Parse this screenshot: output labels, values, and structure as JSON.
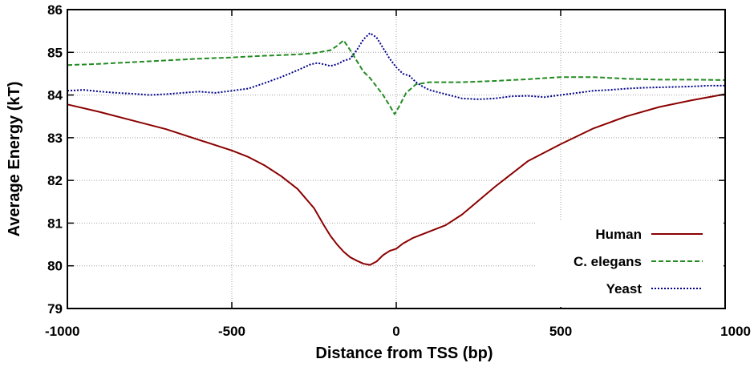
{
  "chart_data": {
    "type": "line",
    "title": "",
    "xlabel": "Distance from TSS (bp)",
    "ylabel": "Average Energy (kT)",
    "xlim": [
      -1000,
      1000
    ],
    "ylim": [
      79,
      86
    ],
    "xticks": [
      -1000,
      -500,
      0,
      500,
      1000
    ],
    "xtick_labels": [
      "-1000",
      "-500",
      "0",
      "500",
      "1000"
    ],
    "yticks": [
      79,
      80,
      81,
      82,
      83,
      84,
      85,
      86
    ],
    "ytick_labels": [
      "79",
      "80",
      "81",
      "82",
      "83",
      "84",
      "85",
      "86"
    ],
    "grid": true,
    "legend_position": "bottom-right",
    "series": [
      {
        "name": "Human",
        "color": "#8b0000",
        "dash": "solid",
        "x": [
          -1000,
          -900,
          -800,
          -700,
          -600,
          -500,
          -450,
          -400,
          -350,
          -300,
          -250,
          -220,
          -200,
          -180,
          -160,
          -140,
          -120,
          -100,
          -80,
          -60,
          -40,
          -20,
          0,
          20,
          50,
          100,
          150,
          200,
          300,
          400,
          500,
          600,
          700,
          800,
          900,
          1000
        ],
        "y": [
          83.78,
          83.6,
          83.4,
          83.2,
          82.95,
          82.7,
          82.55,
          82.35,
          82.1,
          81.8,
          81.35,
          80.95,
          80.7,
          80.5,
          80.33,
          80.2,
          80.12,
          80.05,
          80.02,
          80.1,
          80.25,
          80.35,
          80.4,
          80.52,
          80.65,
          80.8,
          80.95,
          81.2,
          81.85,
          82.45,
          82.85,
          83.22,
          83.5,
          83.72,
          83.88,
          84.02
        ]
      },
      {
        "name": "C. elegans",
        "color": "#228b22",
        "dash": "dashed",
        "x": [
          -1000,
          -900,
          -800,
          -700,
          -600,
          -500,
          -400,
          -300,
          -250,
          -200,
          -180,
          -160,
          -140,
          -120,
          -100,
          -80,
          -60,
          -40,
          -20,
          -5,
          10,
          30,
          60,
          100,
          200,
          300,
          400,
          500,
          600,
          700,
          800,
          900,
          1000
        ],
        "y": [
          84.7,
          84.73,
          84.77,
          84.81,
          84.85,
          84.88,
          84.92,
          84.95,
          84.98,
          85.05,
          85.15,
          85.28,
          85.05,
          84.8,
          84.55,
          84.4,
          84.2,
          84.0,
          83.75,
          83.55,
          83.75,
          84.05,
          84.25,
          84.3,
          84.3,
          84.33,
          84.37,
          84.42,
          84.42,
          84.38,
          84.36,
          84.36,
          84.35
        ]
      },
      {
        "name": "Yeast",
        "color": "#00008b",
        "dash": "dotted",
        "x": [
          -1000,
          -950,
          -900,
          -850,
          -800,
          -750,
          -700,
          -650,
          -600,
          -550,
          -500,
          -450,
          -400,
          -350,
          -300,
          -280,
          -260,
          -240,
          -220,
          -200,
          -180,
          -160,
          -140,
          -120,
          -100,
          -80,
          -60,
          -40,
          -20,
          0,
          20,
          40,
          60,
          80,
          100,
          150,
          200,
          250,
          300,
          350,
          400,
          450,
          500,
          550,
          600,
          650,
          700,
          750,
          800,
          850,
          900,
          950,
          1000
        ],
        "y": [
          84.1,
          84.12,
          84.08,
          84.05,
          84.03,
          84.0,
          84.02,
          84.05,
          84.08,
          84.05,
          84.1,
          84.15,
          84.28,
          84.42,
          84.58,
          84.65,
          84.72,
          84.75,
          84.72,
          84.68,
          84.72,
          84.8,
          84.85,
          85.05,
          85.3,
          85.45,
          85.35,
          85.1,
          84.85,
          84.65,
          84.5,
          84.45,
          84.3,
          84.2,
          84.12,
          84.02,
          83.92,
          83.9,
          83.92,
          83.97,
          83.98,
          83.95,
          84.0,
          84.05,
          84.1,
          84.12,
          84.15,
          84.17,
          84.18,
          84.19,
          84.2,
          84.22,
          84.22
        ]
      }
    ]
  }
}
